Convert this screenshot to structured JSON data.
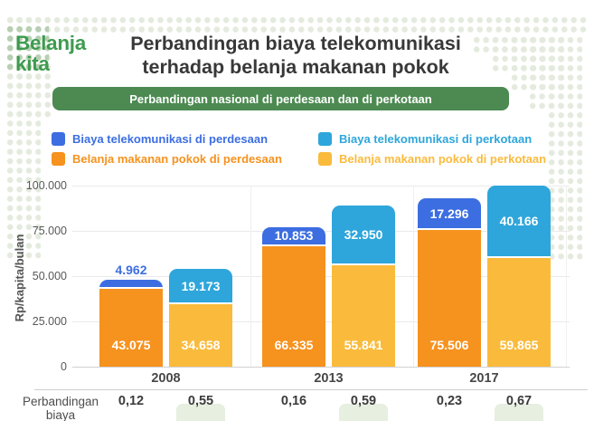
{
  "logo": {
    "line1": "Belanja",
    "line2": "kita",
    "color": "#3E9B4F"
  },
  "title": {
    "line1": "Perbandingan biaya telekomunikasi",
    "line2": "terhadap belanja makanan pokok"
  },
  "banner": {
    "text": "Perbandingan nasional di perdesaan dan di perkotaan",
    "bg_color": "#4C8A51"
  },
  "legend": {
    "items": [
      {
        "label": "Biaya telekomunikasi di perdesaan",
        "color": "#3C6EE1"
      },
      {
        "label": "Belanja makanan pokok di perdesaan",
        "color": "#F6921E"
      },
      {
        "label": "Biaya telekomunikasi di perkotaan",
        "color": "#2EA6DB"
      },
      {
        "label": "Belanja makanan pokok di perkotaan",
        "color": "#FABB3D"
      }
    ]
  },
  "chart_data": {
    "type": "bar",
    "stacked": true,
    "categories": [
      "2008",
      "2013",
      "2017"
    ],
    "ylabel": "Rp/kapita/bulan",
    "ylim": [
      0,
      100000
    ],
    "grid": true,
    "legend_position": "top",
    "yticks": [
      {
        "value": 0,
        "label": "0"
      },
      {
        "value": 25000,
        "label": "25.000"
      },
      {
        "value": 50000,
        "label": "50.000"
      },
      {
        "value": 75000,
        "label": "75.000"
      },
      {
        "value": 100000,
        "label": "100.000"
      }
    ],
    "stack_order": [
      "perdesaan",
      "perkotaan"
    ],
    "series": [
      {
        "name": "Biaya telekomunikasi di perdesaan",
        "stack": "perdesaan",
        "position": "top",
        "color": "#3C6EE1",
        "values": [
          4962,
          10853,
          17296
        ]
      },
      {
        "name": "Belanja makanan pokok di perdesaan",
        "stack": "perdesaan",
        "position": "bottom",
        "color": "#F6921E",
        "values": [
          43075,
          66335,
          75506
        ]
      },
      {
        "name": "Biaya telekomunikasi di perkotaan",
        "stack": "perkotaan",
        "position": "top",
        "color": "#2EA6DB",
        "values": [
          19173,
          32950,
          40166
        ]
      },
      {
        "name": "Belanja makanan pokok di perkotaan",
        "stack": "perkotaan",
        "position": "bottom",
        "color": "#FABB3D",
        "values": [
          34658,
          55841,
          59865
        ]
      }
    ],
    "ratio_row": {
      "label_line1": "Perbandingan",
      "label_line2": "biaya",
      "values": [
        "0,12",
        "0,55",
        "0,16",
        "0,59",
        "0,23",
        "0,67"
      ],
      "highlight_mask": [
        false,
        true,
        false,
        true,
        false,
        true
      ],
      "highlight_color": "#E6EFE0"
    }
  }
}
